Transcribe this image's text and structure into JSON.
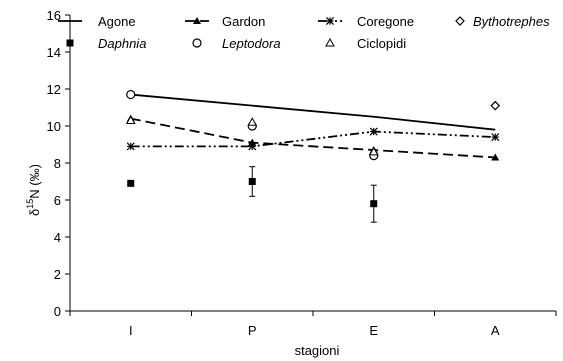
{
  "chart_data": {
    "type": "line",
    "xlabel": "stagioni",
    "ylabel_main": "δ",
    "ylabel_sup": "15",
    "ylabel_rest": "N (‰)",
    "categories": [
      "I",
      "P",
      "E",
      "A"
    ],
    "ylim": [
      0,
      16
    ],
    "yticks": [
      0,
      2,
      4,
      6,
      8,
      10,
      12,
      14,
      16
    ],
    "grid": false,
    "legend_position": "top",
    "series": [
      {
        "name": "Agone",
        "kind": "line",
        "dash": "solid",
        "marker": "none",
        "values": [
          11.7,
          11.1,
          10.5,
          9.8
        ]
      },
      {
        "name": "Gardon",
        "kind": "line",
        "dash": "dash",
        "marker": "filled-triangle",
        "values": [
          10.4,
          9.1,
          8.7,
          8.3
        ]
      },
      {
        "name": "Coregone",
        "kind": "line",
        "dash": "dashdotdot",
        "marker": "star",
        "values": [
          8.9,
          8.9,
          9.7,
          9.4
        ]
      },
      {
        "name": "Bythotrephes",
        "kind": "scatter",
        "marker": "open-diamond",
        "italic": true,
        "values": [
          11.7,
          null,
          null,
          11.1
        ]
      },
      {
        "name": "Daphnia",
        "kind": "scatter",
        "marker": "filled-square",
        "italic": true,
        "values": [
          6.9,
          7.0,
          5.8,
          null
        ],
        "errors": [
          null,
          0.8,
          1.0,
          null
        ]
      },
      {
        "name": "Leptodora",
        "kind": "scatter",
        "marker": "open-circle",
        "italic": true,
        "values": [
          11.7,
          10.0,
          8.4,
          null
        ]
      },
      {
        "name": "Ciclopidi",
        "kind": "scatter",
        "marker": "open-triangle",
        "values": [
          10.3,
          10.2,
          8.6,
          null
        ]
      }
    ]
  }
}
